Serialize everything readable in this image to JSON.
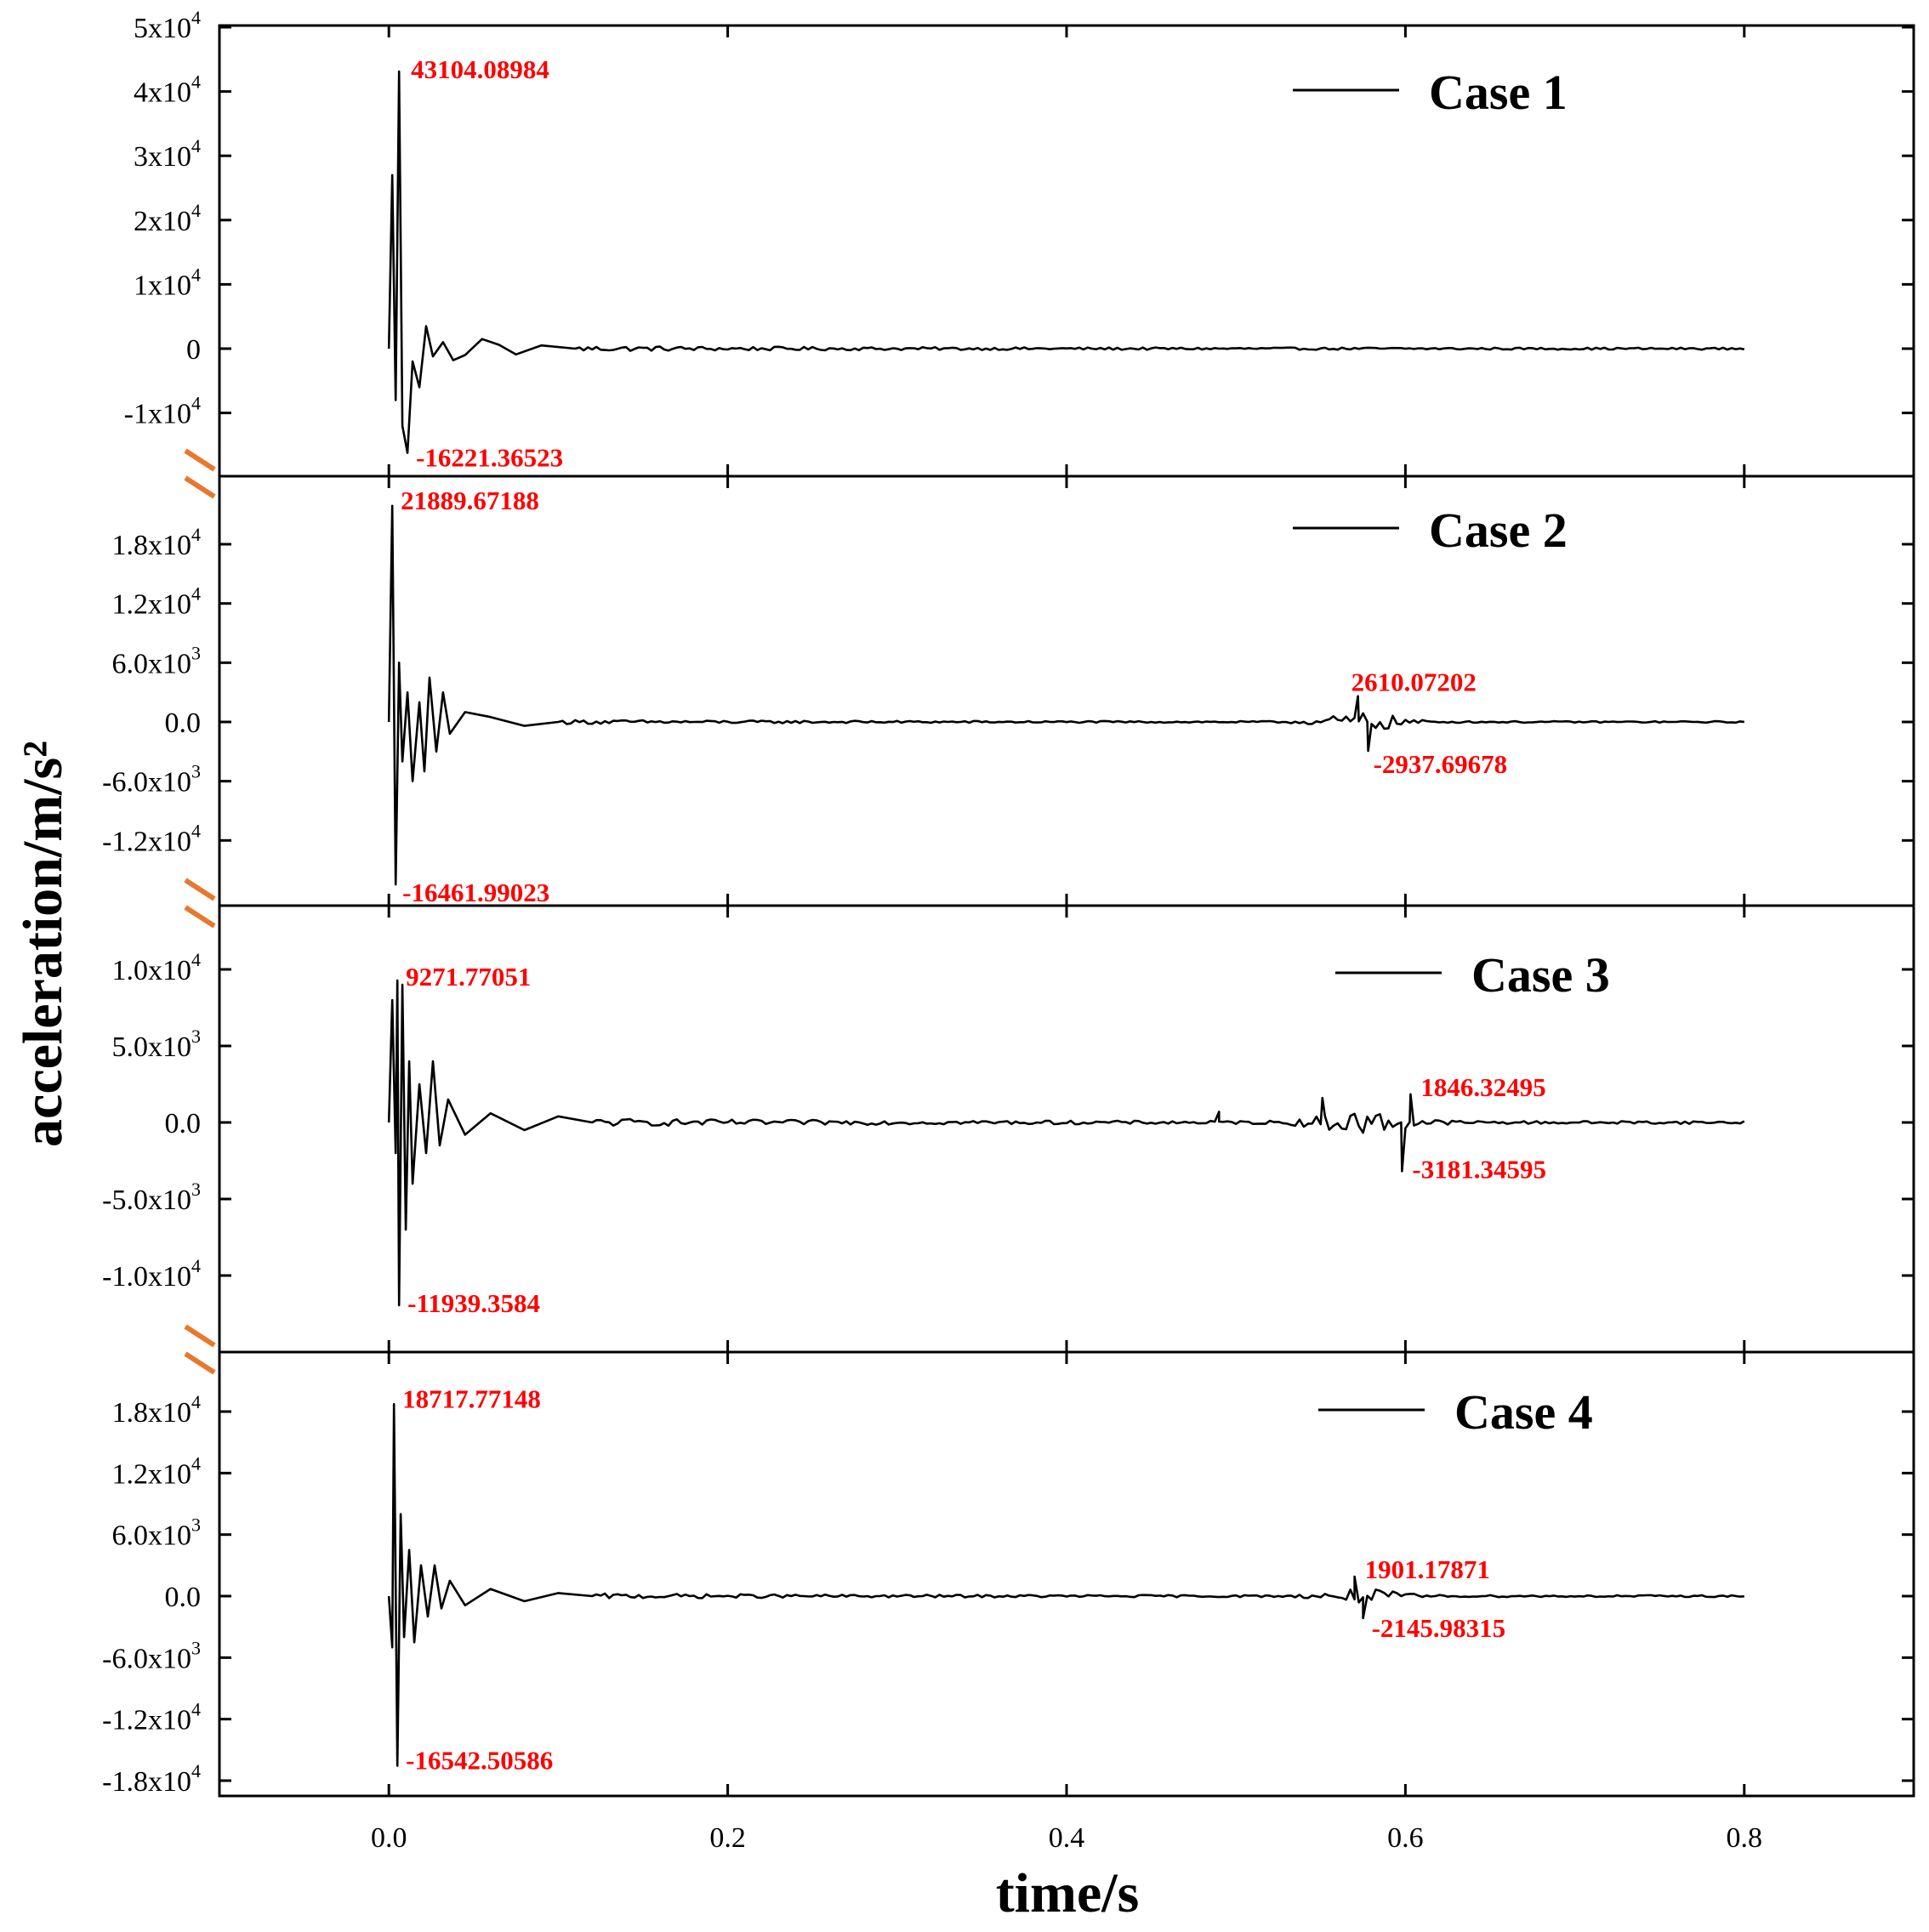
{
  "chart_data": {
    "type": "line",
    "xlabel": "time/s",
    "ylabel": "acceleration/m/s²",
    "xlim": [
      -0.1,
      0.9
    ],
    "x_ticks": [
      "0.0",
      "0.2",
      "0.4",
      "0.6",
      "0.8"
    ],
    "x_tick_values": [
      0.0,
      0.2,
      0.4,
      0.6,
      0.8
    ],
    "axis_break_color": "#e8782e",
    "line_color": "#000000",
    "annotation_color": "#ff0000",
    "panels": [
      {
        "name": "Case 1",
        "ylim": [
          -17500,
          50000
        ],
        "y_ticks": [
          {
            "value": 50000,
            "m": "5x10",
            "e": "4"
          },
          {
            "value": 40000,
            "m": "4x10",
            "e": "4"
          },
          {
            "value": 30000,
            "m": "3x10",
            "e": "4"
          },
          {
            "value": 20000,
            "m": "2x10",
            "e": "4"
          },
          {
            "value": 10000,
            "m": "1x10",
            "e": "4"
          },
          {
            "value": 0,
            "m": "0",
            "e": ""
          },
          {
            "value": -10000,
            "m": "-1x10",
            "e": "4"
          }
        ],
        "noise": 450,
        "peaks": [
          [
            0.0,
            0
          ],
          [
            0.002,
            27000
          ],
          [
            0.004,
            -8000
          ],
          [
            0.006,
            43104.09
          ],
          [
            0.008,
            -12000
          ],
          [
            0.011,
            -16221.37
          ],
          [
            0.014,
            -2000
          ],
          [
            0.018,
            -6000
          ],
          [
            0.022,
            3500
          ],
          [
            0.026,
            -1200
          ],
          [
            0.032,
            1000
          ],
          [
            0.038,
            -1800
          ],
          [
            0.045,
            -1000
          ],
          [
            0.055,
            1500
          ],
          [
            0.065,
            600
          ],
          [
            0.075,
            -900
          ],
          [
            0.09,
            500
          ],
          [
            0.11,
            0
          ]
        ],
        "bursts": [],
        "annotations": [
          {
            "text": "43104.08984",
            "x": 0.006,
            "y": 43104.09,
            "dx": 14,
            "dy": 8
          },
          {
            "text": "-16221.36523",
            "x": 0.011,
            "y": -16221.37,
            "dx": 10,
            "dy": 16
          }
        ]
      },
      {
        "name": "Case 2",
        "ylim": [
          -17500,
          23000
        ],
        "y_ticks": [
          {
            "value": 18000,
            "m": "1.8x10",
            "e": "4"
          },
          {
            "value": 12000,
            "m": "1.2x10",
            "e": "4"
          },
          {
            "value": 6000,
            "m": "6.0x10",
            "e": "3"
          },
          {
            "value": 0,
            "m": "0.0",
            "e": ""
          },
          {
            "value": -6000,
            "m": "-6.0x10",
            "e": "3"
          },
          {
            "value": -12000,
            "m": "-1.2x10",
            "e": "4"
          }
        ],
        "noise": 220,
        "peaks": [
          [
            0.0,
            0
          ],
          [
            0.002,
            21889.67
          ],
          [
            0.004,
            -16461.99
          ],
          [
            0.006,
            6000
          ],
          [
            0.008,
            -4000
          ],
          [
            0.011,
            3000
          ],
          [
            0.014,
            -6000
          ],
          [
            0.018,
            2000
          ],
          [
            0.021,
            -5000
          ],
          [
            0.024,
            4500
          ],
          [
            0.028,
            -3000
          ],
          [
            0.032,
            3000
          ],
          [
            0.036,
            -1200
          ],
          [
            0.045,
            1000
          ],
          [
            0.06,
            500
          ],
          [
            0.08,
            -400
          ],
          [
            0.1,
            0
          ]
        ],
        "bursts": [
          {
            "center": 0.575,
            "width": 0.025,
            "amp": 900
          },
          {
            "spike": 0.572,
            "value": 2610.07
          },
          {
            "spike": 0.578,
            "value": -2937.7
          }
        ],
        "annotations": [
          {
            "text": "21889.67188",
            "x": 0.002,
            "y": 21889.67,
            "dx": 10,
            "dy": 4
          },
          {
            "text": "-16461.99023",
            "x": 0.004,
            "y": -16461.99,
            "dx": 8,
            "dy": 20
          },
          {
            "text": "2610.07202",
            "x": 0.572,
            "y": 2610.07,
            "dx": -8,
            "dy": -6
          },
          {
            "text": "-2937.69678",
            "x": 0.578,
            "y": -2937.7,
            "dx": 6,
            "dy": 26
          }
        ]
      },
      {
        "name": "Case 3",
        "ylim": [
          -14000,
          13000
        ],
        "y_ticks": [
          {
            "value": 10000,
            "m": "1.0x10",
            "e": "4"
          },
          {
            "value": 5000,
            "m": "5.0x10",
            "e": "3"
          },
          {
            "value": 0,
            "m": "0.0",
            "e": ""
          },
          {
            "value": -5000,
            "m": "-5.0x10",
            "e": "3"
          },
          {
            "value": -10000,
            "m": "-1.0x10",
            "e": "4"
          }
        ],
        "noise": 260,
        "peaks": [
          [
            0.0,
            0
          ],
          [
            0.002,
            8000
          ],
          [
            0.004,
            -2000
          ],
          [
            0.005,
            9271.77
          ],
          [
            0.006,
            -11939.36
          ],
          [
            0.008,
            9000
          ],
          [
            0.01,
            -7000
          ],
          [
            0.012,
            4000
          ],
          [
            0.014,
            -4000
          ],
          [
            0.018,
            2500
          ],
          [
            0.022,
            -2000
          ],
          [
            0.026,
            4000
          ],
          [
            0.03,
            -1500
          ],
          [
            0.035,
            1500
          ],
          [
            0.045,
            -800
          ],
          [
            0.06,
            600
          ],
          [
            0.08,
            -500
          ],
          [
            0.1,
            400
          ],
          [
            0.12,
            0
          ]
        ],
        "bursts": [
          {
            "center": 0.575,
            "width": 0.03,
            "amp": 700
          },
          {
            "spike": 0.551,
            "value": 1600
          },
          {
            "spike": 0.49,
            "value": 700
          },
          {
            "spike": 0.603,
            "value": 1846.32
          },
          {
            "spike": 0.598,
            "value": -3181.35
          }
        ],
        "annotations": [
          {
            "text": "9271.77051",
            "x": 0.005,
            "y": 9271.77,
            "dx": 10,
            "dy": 6
          },
          {
            "text": "-11939.3584",
            "x": 0.006,
            "y": -11939.36,
            "dx": 10,
            "dy": 8
          },
          {
            "text": "1846.32495",
            "x": 0.603,
            "y": 1846.32,
            "dx": 12,
            "dy": 2
          },
          {
            "text": "-3181.34595",
            "x": 0.598,
            "y": -3181.35,
            "dx": 12,
            "dy": 8
          }
        ]
      },
      {
        "name": "Case 4",
        "ylim": [
          -19500,
          21000
        ],
        "y_ticks": [
          {
            "value": 18000,
            "m": "1.8x10",
            "e": "4"
          },
          {
            "value": 12000,
            "m": "1.2x10",
            "e": "4"
          },
          {
            "value": 6000,
            "m": "6.0x10",
            "e": "3"
          },
          {
            "value": 0,
            "m": "0.0",
            "e": ""
          },
          {
            "value": -6000,
            "m": "-6.0x10",
            "e": "3"
          },
          {
            "value": -12000,
            "m": "-1.2x10",
            "e": "4"
          },
          {
            "value": -18000,
            "m": "-1.8x10",
            "e": "4"
          }
        ],
        "noise": 260,
        "peaks": [
          [
            0.0,
            0
          ],
          [
            0.002,
            -5000
          ],
          [
            0.003,
            18717.77
          ],
          [
            0.005,
            -16542.51
          ],
          [
            0.007,
            8000
          ],
          [
            0.009,
            -4000
          ],
          [
            0.012,
            4500
          ],
          [
            0.015,
            -4500
          ],
          [
            0.019,
            3000
          ],
          [
            0.023,
            -2000
          ],
          [
            0.027,
            3000
          ],
          [
            0.031,
            -1200
          ],
          [
            0.036,
            1500
          ],
          [
            0.045,
            -900
          ],
          [
            0.06,
            700
          ],
          [
            0.08,
            -500
          ],
          [
            0.1,
            300
          ],
          [
            0.12,
            0
          ]
        ],
        "bursts": [
          {
            "center": 0.575,
            "width": 0.025,
            "amp": 600
          },
          {
            "spike": 0.57,
            "value": 1901.18
          },
          {
            "spike": 0.575,
            "value": -2145.98
          }
        ],
        "annotations": [
          {
            "text": "18717.77148",
            "x": 0.003,
            "y": 18717.77,
            "dx": 10,
            "dy": 4
          },
          {
            "text": "-16542.50586",
            "x": 0.005,
            "y": -16542.51,
            "dx": 10,
            "dy": 4
          },
          {
            "text": "1901.17871",
            "x": 0.57,
            "y": 1901.18,
            "dx": 12,
            "dy": 2
          },
          {
            "text": "-2145.98315",
            "x": 0.575,
            "y": -2145.98,
            "dx": 10,
            "dy": 22
          }
        ]
      }
    ]
  }
}
